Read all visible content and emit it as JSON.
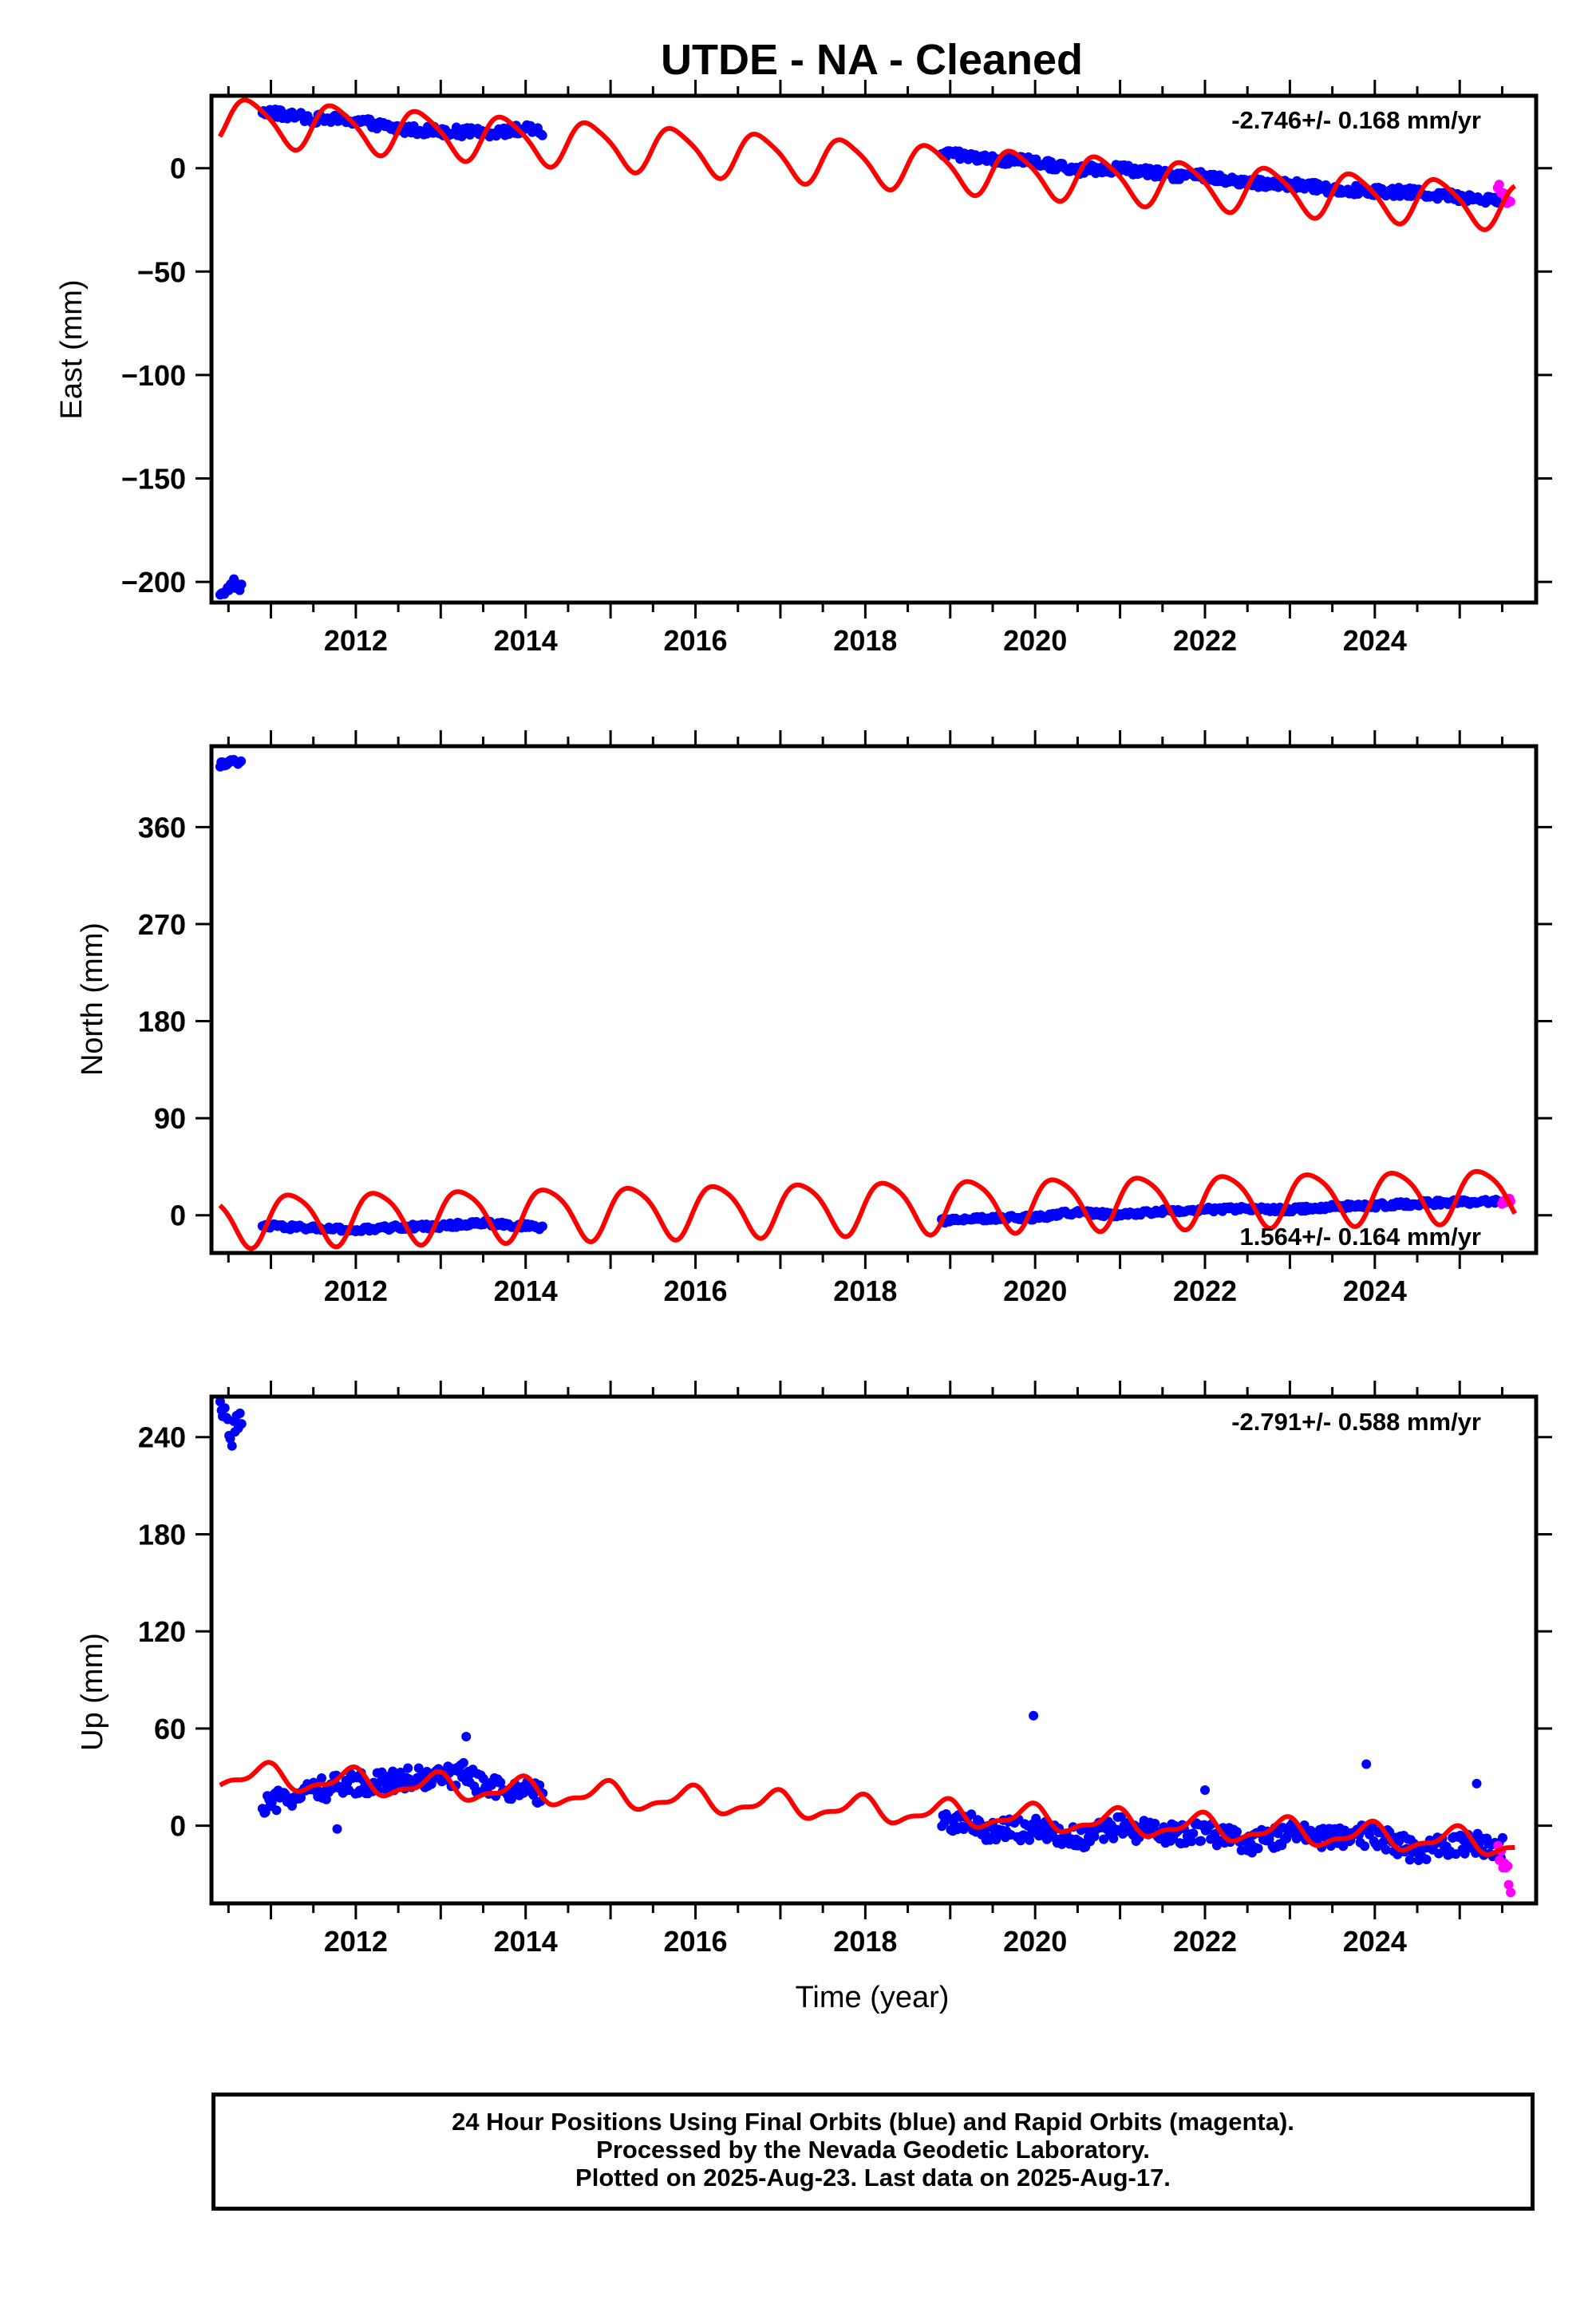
{
  "title": "UTDE  - NA - Cleaned",
  "footer": {
    "line1": "24 Hour Positions Using Final Orbits (blue) and Rapid Orbits (magenta).",
    "line2": "Processed by the Nevada Geodetic Laboratory.",
    "line3": "Plotted on 2025-Aug-23. Last data on 2025-Aug-17."
  },
  "colors": {
    "final": "#0000ff",
    "rapid": "#ff00ff",
    "model": "#ff0000",
    "frame": "#000000"
  },
  "chart_data": [
    {
      "type": "scatter",
      "ylabel": "East (mm)",
      "xlabel": "",
      "xlim": [
        2010.3,
        2025.9
      ],
      "ylim": [
        -210,
        35
      ],
      "xticks": [
        2012,
        2014,
        2016,
        2018,
        2020,
        2022,
        2024
      ],
      "yticks": [
        0,
        -50,
        -100,
        -150,
        -200
      ],
      "rate_text": "-2.746+/- 0.168 mm/yr",
      "rate_position": "top-right",
      "grid": false,
      "series": [
        {
          "kind": "final",
          "segments": [
            {
              "x": [
                2010.4,
                2010.5,
                2010.55,
                2010.6,
                2010.65
              ],
              "y": [
                -205,
                -204,
                -200,
                -202,
                -203
              ]
            },
            {
              "x": [
                2010.9,
                2011.5,
                2012.0,
                2012.5,
                2013.0,
                2013.5,
                2014.0,
                2014.2
              ],
              "y": [
                27,
                24,
                23,
                19,
                18,
                17,
                19,
                17
              ]
            },
            {
              "x": [
                2018.9,
                2019.5,
                2020.0,
                2020.5,
                2021.0,
                2021.5,
                2022.0,
                2022.5,
                2023.0,
                2023.5,
                2024.0,
                2024.5,
                2025.0,
                2025.5
              ],
              "y": [
                7,
                4,
                3,
                -1,
                0,
                -3,
                -4,
                -7,
                -8,
                -10,
                -11,
                -12,
                -14,
                -15
              ]
            }
          ]
        },
        {
          "kind": "rapid",
          "segments": [
            {
              "x": [
                2025.45,
                2025.5,
                2025.55,
                2025.6
              ],
              "y": [
                -9,
                -12,
                -15,
                -17
              ]
            }
          ]
        }
      ],
      "model": {
        "x0": 2018.0,
        "intercept": 2.5,
        "slope": -2.746,
        "annual_amp": 10.8,
        "annual_phase": 3.1,
        "semi_amp": 2.0,
        "semi_phase": 0.5
      }
    },
    {
      "type": "scatter",
      "ylabel": "North (mm)",
      "xlabel": "",
      "xlim": [
        2010.3,
        2025.9
      ],
      "ylim": [
        -35,
        435
      ],
      "xticks": [
        2012,
        2014,
        2016,
        2018,
        2020,
        2022,
        2024
      ],
      "yticks": [
        360,
        270,
        180,
        90,
        0
      ],
      "rate_text": "1.564+/- 0.164 mm/yr",
      "rate_position": "bottom-right",
      "grid": false,
      "series": [
        {
          "kind": "final",
          "segments": [
            {
              "x": [
                2010.4,
                2010.5,
                2010.55,
                2010.6,
                2010.65
              ],
              "y": [
                418,
                420,
                421,
                419,
                420
              ]
            },
            {
              "x": [
                2010.9,
                2011.5,
                2012.0,
                2012.5,
                2013.0,
                2013.5,
                2014.0,
                2014.2
              ],
              "y": [
                -10,
                -12,
                -14,
                -11,
                -10,
                -7,
                -10,
                -12
              ]
            },
            {
              "x": [
                2018.9,
                2019.5,
                2020.0,
                2020.5,
                2021.0,
                2021.5,
                2022.0,
                2022.5,
                2023.0,
                2023.5,
                2024.0,
                2024.5,
                2025.0,
                2025.5
              ],
              "y": [
                -5,
                -3,
                -2,
                3,
                0,
                4,
                5,
                6,
                5,
                8,
                9,
                11,
                12,
                13
              ]
            }
          ]
        },
        {
          "kind": "rapid",
          "segments": [
            {
              "x": [
                2025.5,
                2025.55,
                2025.6
              ],
              "y": [
                12,
                14,
                13
              ]
            }
          ]
        }
      ],
      "model": {
        "x0": 2018.0,
        "intercept": 8.0,
        "slope": 1.564,
        "annual_amp": 24.0,
        "annual_phase": 0.0,
        "semi_amp": 4.0,
        "semi_phase": 1.0
      }
    },
    {
      "type": "scatter",
      "ylabel": "Up (mm)",
      "xlabel": "Time (year)",
      "xlim": [
        2010.3,
        2025.9
      ],
      "ylim": [
        -48,
        265
      ],
      "xticks": [
        2012,
        2014,
        2016,
        2018,
        2020,
        2022,
        2024
      ],
      "yticks": [
        240,
        180,
        120,
        60,
        0
      ],
      "rate_text": "-2.791+/- 0.588 mm/yr",
      "rate_position": "top-right",
      "grid": false,
      "series": [
        {
          "kind": "final",
          "segments": [
            {
              "x": [
                2010.4,
                2010.5,
                2010.55,
                2010.6,
                2010.65
              ],
              "y": [
                258,
                248,
                240,
                252,
                246
              ]
            },
            {
              "x": [
                2010.9,
                2011.2,
                2011.5,
                2012.0,
                2012.5,
                2013.0,
                2013.3,
                2013.5,
                2014.0,
                2014.2
              ],
              "y": [
                10,
                18,
                22,
                26,
                29,
                30,
                32,
                24,
                20,
                19
              ]
            },
            {
              "x": [
                2018.9,
                2019.5,
                2020.0,
                2020.5,
                2021.0,
                2021.5,
                2022.0,
                2022.5,
                2023.0,
                2023.5,
                2024.0,
                2024.5,
                2025.0,
                2025.5
              ],
              "y": [
                5,
                -3,
                -2,
                -8,
                -1,
                -6,
                -3,
                -12,
                -4,
                -8,
                -6,
                -16,
                -10,
                -14
              ]
            }
          ]
        },
        {
          "kind": "rapid",
          "segments": [
            {
              "x": [
                2025.45,
                2025.5,
                2025.55,
                2025.6
              ],
              "y": [
                -18,
                -22,
                -26,
                -40
              ]
            }
          ]
        }
      ],
      "outliers": {
        "x": [
          2011.78,
          2013.3,
          2019.98,
          2022.0,
          2023.9,
          2025.2
        ],
        "y": [
          -2,
          55,
          68,
          22,
          38,
          26
        ]
      },
      "model": {
        "x0": 2018.0,
        "intercept": 10.0,
        "slope": -2.791,
        "annual_amp": 7.0,
        "annual_phase": 2.0,
        "semi_amp": 3.0,
        "semi_phase": 1.5
      }
    }
  ]
}
